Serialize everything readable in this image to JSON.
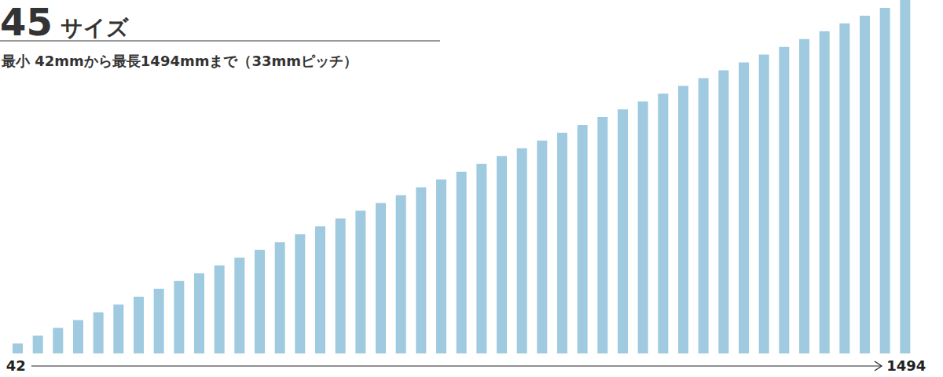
{
  "chart_data": {
    "type": "bar",
    "title": "45 サイズ",
    "subtitle": "最小 42mmから最長1494mmまで（33mmピッチ）",
    "categories": [
      "42",
      null,
      null,
      null,
      null,
      null,
      null,
      null,
      null,
      null,
      null,
      null,
      null,
      null,
      null,
      null,
      null,
      null,
      null,
      null,
      null,
      null,
      null,
      null,
      null,
      null,
      null,
      null,
      null,
      null,
      null,
      null,
      null,
      null,
      null,
      null,
      null,
      null,
      null,
      null,
      null,
      null,
      null,
      null,
      "1494"
    ],
    "values": [
      42,
      75,
      108,
      141,
      174,
      207,
      240,
      273,
      306,
      339,
      372,
      405,
      438,
      471,
      504,
      537,
      570,
      603,
      636,
      669,
      702,
      735,
      768,
      801,
      834,
      867,
      900,
      933,
      966,
      999,
      1032,
      1065,
      1098,
      1131,
      1164,
      1197,
      1230,
      1263,
      1296,
      1329,
      1362,
      1395,
      1428,
      1461,
      1494
    ],
    "color": "#9fcae0",
    "ylim": [
      0,
      1494
    ],
    "tick_labels": "x"
  }
}
